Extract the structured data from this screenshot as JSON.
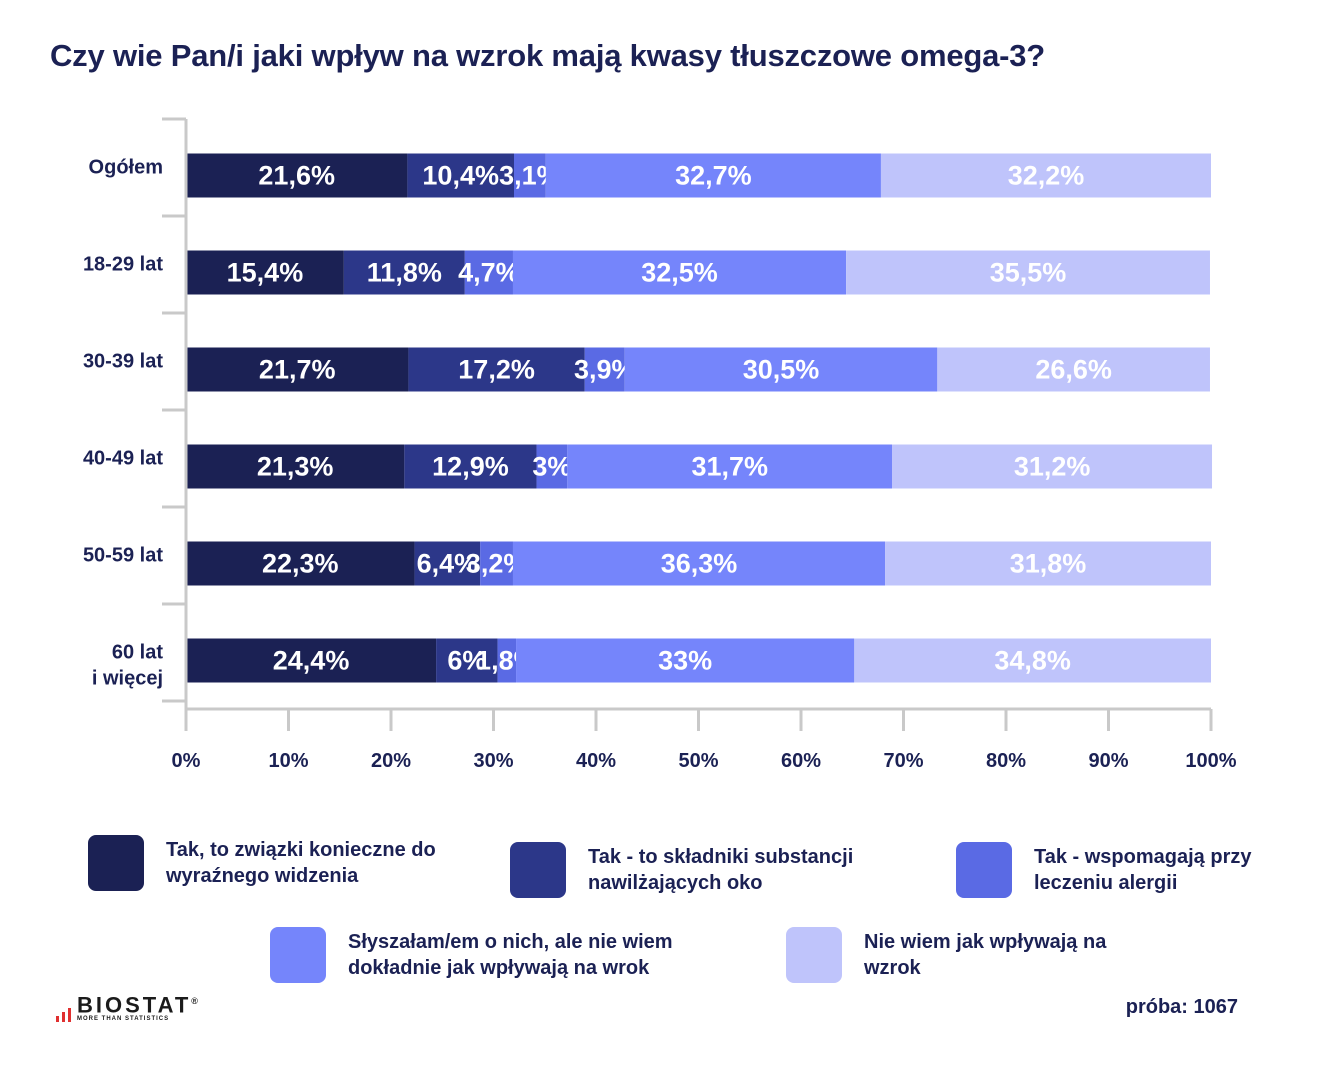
{
  "title": "Czy wie Pan/i jaki wpływ na wzrok mają kwasy tłuszczowe omega-3?",
  "chart_data": {
    "type": "bar",
    "orientation": "horizontal",
    "stacked": true,
    "categories": [
      "Ogółem",
      "18-29 lat",
      "30-39 lat",
      "40-49 lat",
      "50-59 lat",
      "60 lat\ni więcej"
    ],
    "series": [
      {
        "name": "Tak, to związki konieczne do wyraźnego widzenia",
        "color": "#1b2154",
        "values": [
          21.6,
          15.4,
          21.7,
          21.3,
          22.3,
          24.4
        ],
        "labels": [
          "21,6%",
          "15,4%",
          "21,7%",
          "21,3%",
          "22,3%",
          "24,4%"
        ]
      },
      {
        "name": "Tak - to składniki substancji nawilżających oko",
        "color": "#2c3789",
        "values": [
          10.4,
          11.8,
          17.2,
          12.9,
          6.4,
          6.0
        ],
        "labels": [
          "10,4%",
          "11,8%",
          "17,2%",
          "12,9%",
          "6,4%",
          "6%"
        ]
      },
      {
        "name": "Tak - wspomagają przy leczeniu alergii",
        "color": "#5a6ae4",
        "values": [
          3.1,
          4.7,
          3.9,
          3.0,
          3.2,
          1.8
        ],
        "labels": [
          "3,1%",
          "4,7%",
          "3,9%",
          "3%",
          "3,2%",
          "1,8%"
        ]
      },
      {
        "name": "Słyszałam/em o nich, ale nie wiem dokładnie jak wpływają na wrok",
        "color": "#7585fb",
        "values": [
          32.7,
          32.5,
          30.5,
          31.7,
          36.3,
          33.0
        ],
        "labels": [
          "32,7%",
          "32,5%",
          "30,5%",
          "31,7%",
          "36,3%",
          "33%"
        ]
      },
      {
        "name": "Nie wiem jak wpływają na wzrok",
        "color": "#bfc4fb",
        "values": [
          32.2,
          35.5,
          26.6,
          31.2,
          31.8,
          34.8
        ],
        "labels": [
          "32,2%",
          "35,5%",
          "26,6%",
          "31,2%",
          "31,8%",
          "34,8%"
        ]
      }
    ],
    "x_ticks": [
      "0%",
      "10%",
      "20%",
      "30%",
      "40%",
      "50%",
      "60%",
      "70%",
      "80%",
      "90%",
      "100%"
    ],
    "xlim": [
      0,
      100
    ],
    "legend_position": "bottom"
  },
  "legend": {
    "items": [
      {
        "label": "Tak, to związki konieczne do wyraźnego widzenia",
        "color": "#1b2154"
      },
      {
        "label": "Tak - to składniki substancji nawilżających oko",
        "color": "#2c3789"
      },
      {
        "label": "Tak - wspomagają przy leczeniu alergii",
        "color": "#5a6ae4"
      },
      {
        "label": "Słyszałam/em o nich, ale nie wiem dokładnie jak wpływają na wrok",
        "color": "#7585fb"
      },
      {
        "label": "Nie wiem jak wpływają na wzrok",
        "color": "#bfc4fb"
      }
    ]
  },
  "brand": {
    "name": "BIOSTAT",
    "registered": "®",
    "tagline": "MORE THAN STATISTICS"
  },
  "sample": "próba: 1067"
}
